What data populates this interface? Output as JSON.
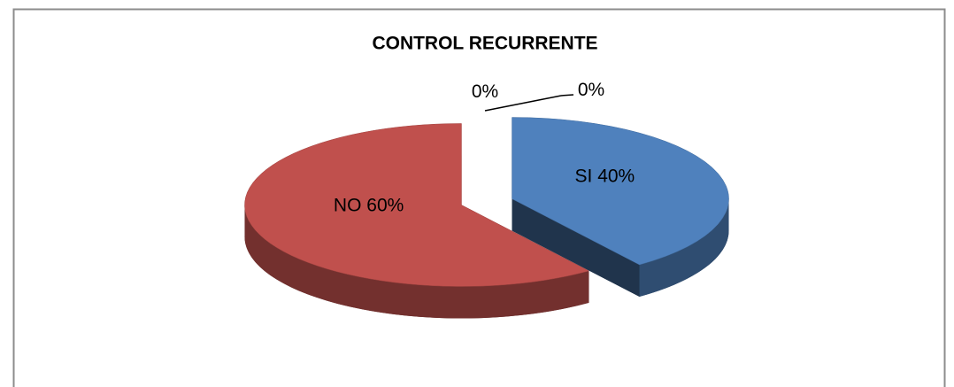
{
  "chart_data": {
    "type": "pie",
    "title": "CONTROL RECURRENTE",
    "categories": [
      "SI",
      "NO",
      null,
      null
    ],
    "values": [
      40,
      60,
      0,
      0
    ],
    "value_labels": [
      "40%",
      "60%",
      "0%",
      "0%"
    ],
    "colors": [
      "#4f81bd",
      "#c0504d",
      "#9bbb59",
      "#8064a2"
    ]
  }
}
